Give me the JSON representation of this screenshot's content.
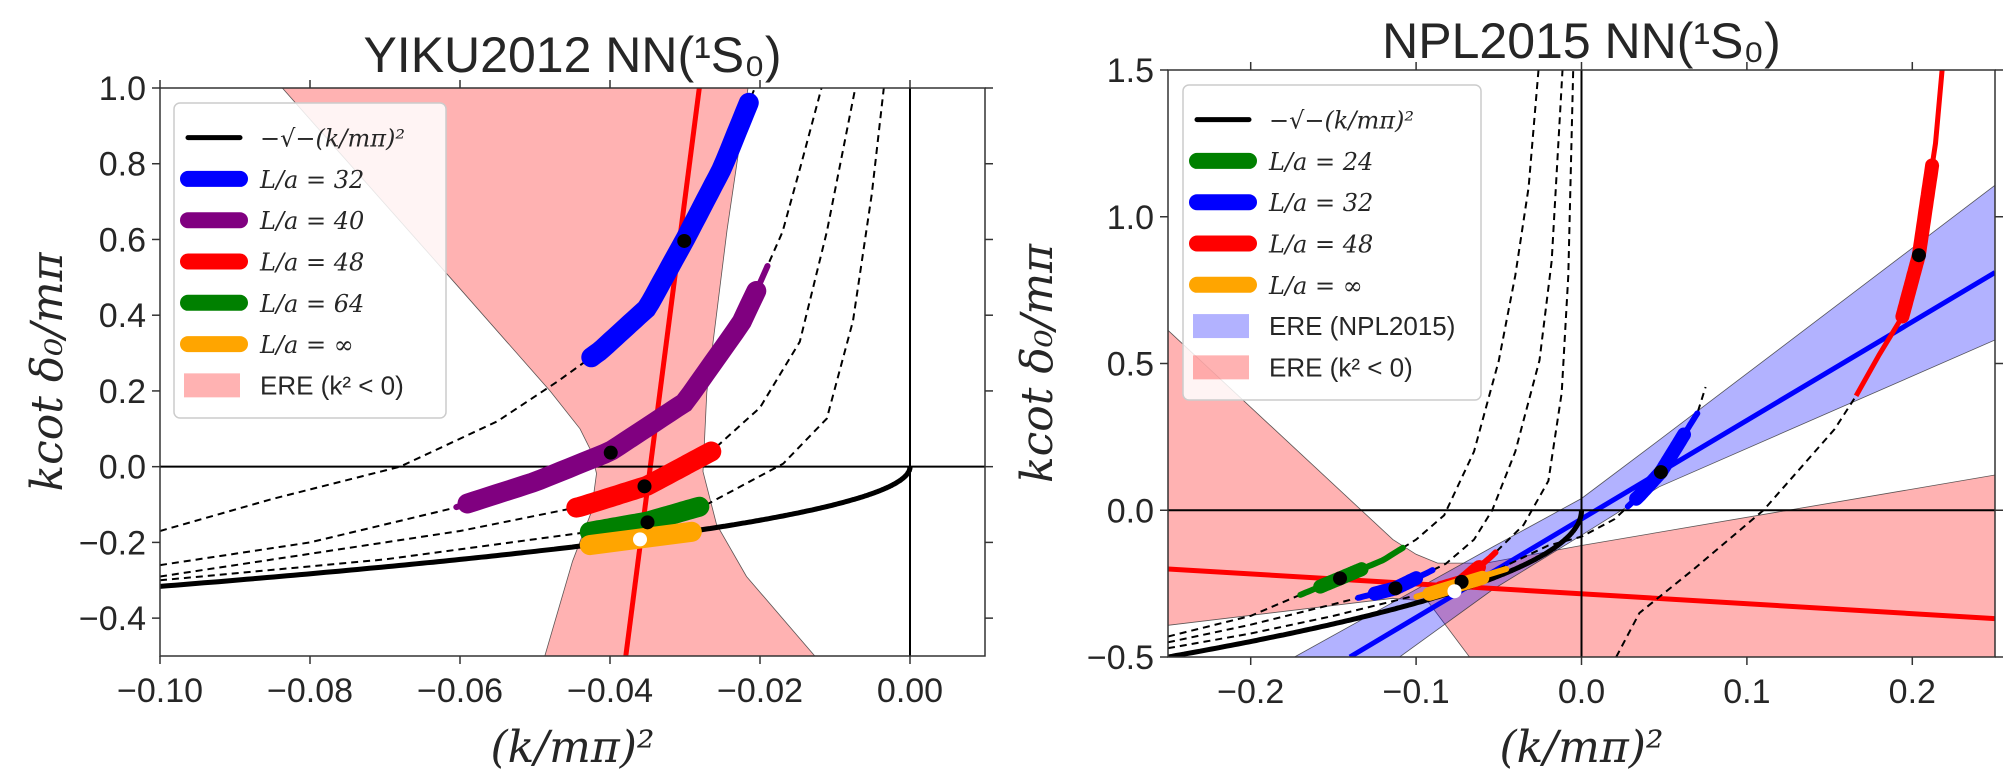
{
  "chart_data": [
    {
      "type": "line",
      "title": "YIKU2012 NN(¹S₀)",
      "xlabel": "(k/mπ)²",
      "ylabel": "kcot δ₀/mπ",
      "xlim": [
        -0.1,
        0.01
      ],
      "ylim": [
        -0.5,
        1.0
      ],
      "grid": false,
      "legend_position": "upper-left",
      "xticks": [
        -0.1,
        -0.08,
        -0.06,
        -0.04,
        -0.02,
        0.0
      ],
      "xtick_labels": [
        "−0.10",
        "−0.08",
        "−0.06",
        "−0.04",
        "−0.02",
        "0.00"
      ],
      "yticks": [
        -0.4,
        -0.2,
        0.0,
        0.2,
        0.4,
        0.6,
        0.8,
        1.0
      ],
      "ytick_labels": [
        "−0.4",
        "−0.2",
        "0.0",
        "0.2",
        "0.4",
        "0.6",
        "0.8",
        "1.0"
      ],
      "regions": [
        {
          "name": "ERE (k² < 0)",
          "color": "#ff0000",
          "points": [
            [
              -0.0837,
              1.0
            ],
            [
              -0.06,
              0.47
            ],
            [
              -0.048,
              0.2
            ],
            [
              -0.044,
              0.1
            ],
            [
              -0.0425,
              0.04
            ],
            [
              -0.0418,
              -0.018
            ],
            [
              -0.0425,
              -0.12
            ],
            [
              -0.045,
              -0.25
            ],
            [
              -0.0487,
              -0.5
            ],
            [
              -0.0127,
              -0.5
            ],
            [
              -0.0218,
              -0.29
            ],
            [
              -0.0258,
              -0.152
            ],
            [
              -0.0276,
              -0.013
            ],
            [
              -0.0271,
              0.196
            ],
            [
              -0.0244,
              0.624
            ],
            [
              -0.0216,
              1.0
            ]
          ]
        }
      ],
      "lines": [
        {
          "name": "ERE (k² < 0) fit",
          "color": "#ff0000",
          "points": [
            [
              -0.0281,
              1.0
            ],
            [
              -0.0379,
              -0.5
            ]
          ]
        }
      ],
      "curves": [
        {
          "name": "Lüscher L/a=32",
          "style": "dashed",
          "color": "#000000",
          "points": [
            [
              -0.1,
              -0.17
            ],
            [
              -0.085,
              -0.085
            ],
            [
              -0.068,
              0.0
            ],
            [
              -0.055,
              0.12
            ],
            [
              -0.047,
              0.225
            ],
            [
              -0.0413,
              0.306
            ],
            [
              -0.035,
              0.42
            ],
            [
              -0.03,
              0.6
            ],
            [
              -0.025,
              0.79
            ],
            [
              -0.0207,
              1.0
            ]
          ]
        },
        {
          "name": "Lüscher L/a=40",
          "style": "dashed",
          "color": "#000000",
          "points": [
            [
              -0.1,
              -0.26
            ],
            [
              -0.08,
              -0.2
            ],
            [
              -0.061,
              -0.11
            ],
            [
              -0.05,
              -0.04
            ],
            [
              -0.04,
              0.04
            ],
            [
              -0.03,
              0.17
            ],
            [
              -0.0225,
              0.38
            ],
            [
              -0.02,
              0.485
            ],
            [
              -0.017,
              0.62
            ],
            [
              -0.0145,
              0.8
            ],
            [
              -0.0118,
              1.0
            ]
          ]
        },
        {
          "name": "Lüscher L/a=48",
          "style": "dashed",
          "color": "#000000",
          "points": [
            [
              -0.1,
              -0.29
            ],
            [
              -0.08,
              -0.23
            ],
            [
              -0.06,
              -0.17
            ],
            [
              -0.044,
              -0.106
            ],
            [
              -0.035,
              -0.05
            ],
            [
              -0.0265,
              0.04
            ],
            [
              -0.02,
              0.156
            ],
            [
              -0.0147,
              0.33
            ],
            [
              -0.0111,
              0.62
            ],
            [
              -0.0073,
              1.0
            ]
          ]
        },
        {
          "name": "Lüscher L/a=64",
          "style": "dashed",
          "color": "#000000",
          "points": [
            [
              -0.1,
              -0.3
            ],
            [
              -0.07,
              -0.245
            ],
            [
              -0.0427,
              -0.172
            ],
            [
              -0.035,
              -0.145
            ],
            [
              -0.0271,
              -0.1
            ],
            [
              -0.0169,
              0.008
            ],
            [
              -0.0111,
              0.127
            ],
            [
              -0.0076,
              0.385
            ],
            [
              -0.0051,
              0.72
            ],
            [
              -0.0035,
              1.0
            ]
          ]
        }
      ],
      "sqrt_curve": {
        "label": "−√−(k/mπ)²",
        "function": "-sqrt(-x)",
        "domain": [
          -0.1,
          0.0
        ],
        "color": "#000000"
      },
      "bands": [
        {
          "label": "L/a = 32",
          "color": "#0000ff",
          "curve": 0,
          "thick": [
            -0.0425,
            -0.0215
          ]
        },
        {
          "label": "L/a = 40",
          "color": "#800080",
          "curve": 1,
          "thin": [
            -0.0605,
            -0.019
          ],
          "thick": [
            -0.059,
            -0.0205
          ]
        },
        {
          "label": "L/a = 48",
          "color": "#ff0000",
          "curve": 2,
          "thick": [
            -0.0445,
            -0.0265
          ]
        },
        {
          "label": "L/a = 64",
          "color": "#008000",
          "curve": 3,
          "thick": [
            -0.0427,
            -0.0281
          ]
        },
        {
          "label": "L/a = ∞",
          "color": "#ffa500",
          "thick_points": [
            [
              -0.0427,
              -0.207
            ],
            [
              -0.0291,
              -0.172
            ]
          ]
        }
      ],
      "markers": [
        {
          "x": -0.0301,
          "y": 0.596,
          "color": "#000000"
        },
        {
          "x": -0.0399,
          "y": 0.037,
          "color": "#000000"
        },
        {
          "x": -0.0354,
          "y": -0.052,
          "color": "#000000"
        },
        {
          "x": -0.035,
          "y": -0.147,
          "color": "#000000"
        },
        {
          "x": -0.036,
          "y": -0.192,
          "color": "#ffffff"
        }
      ],
      "legend": [
        {
          "kind": "line",
          "label": "−√−(k/mπ)²",
          "color": "#000000"
        },
        {
          "kind": "band",
          "label": "L/a = 32",
          "color": "#0000ff"
        },
        {
          "kind": "band",
          "label": "L/a = 40",
          "color": "#800080"
        },
        {
          "kind": "band",
          "label": "L/a = 48",
          "color": "#ff0000"
        },
        {
          "kind": "band",
          "label": "L/a = 64",
          "color": "#008000"
        },
        {
          "kind": "band",
          "label": "L/a = ∞",
          "color": "#ffa500"
        },
        {
          "kind": "patch",
          "label": "ERE (k² < 0)",
          "color": "#ff0000"
        }
      ]
    },
    {
      "type": "line",
      "title": "NPL2015 NN(¹S₀)",
      "xlabel": "(k/mπ)²",
      "ylabel": "kcot δ₀/mπ",
      "xlim": [
        -0.25,
        0.25
      ],
      "ylim": [
        -0.5,
        1.5
      ],
      "grid": false,
      "legend_position": "upper-left",
      "xticks": [
        -0.2,
        -0.1,
        0.0,
        0.1,
        0.2
      ],
      "xtick_labels": [
        "−0.2",
        "−0.1",
        "0.0",
        "0.1",
        "0.2"
      ],
      "yticks": [
        -0.5,
        0.0,
        0.5,
        1.0,
        1.5
      ],
      "ytick_labels": [
        "−0.5",
        "0.0",
        "0.5",
        "1.0",
        "1.5"
      ],
      "regions": [
        {
          "name": "ERE (k² < 0)",
          "color": "#ff0000",
          "points": [
            [
              -0.25,
              0.613
            ],
            [
              -0.114,
              -0.1
            ],
            [
              -0.1,
              -0.15
            ],
            [
              -0.087,
              -0.18
            ],
            [
              -0.058,
              -0.18
            ],
            [
              0.0,
              -0.12
            ],
            [
              0.25,
              0.12
            ],
            [
              0.25,
              -0.5
            ],
            [
              -0.0677,
              -0.5
            ],
            [
              -0.093,
              -0.31
            ],
            [
              -0.114,
              -0.3
            ],
            [
              -0.25,
              -0.392
            ]
          ]
        },
        {
          "name": "ERE (NPL2015)",
          "color": "#0000ff",
          "points": [
            [
              -0.1735,
              -0.5
            ],
            [
              -0.0536,
              -0.125
            ],
            [
              0.0,
              0.04
            ],
            [
              0.047,
              0.239
            ],
            [
              0.25,
              1.107
            ],
            [
              0.25,
              0.58
            ],
            [
              0.047,
              0.08
            ],
            [
              0.0,
              -0.085
            ],
            [
              -0.0536,
              -0.27
            ],
            [
              -0.11,
              -0.5
            ]
          ]
        }
      ],
      "lines": [
        {
          "name": "ERE (k² < 0) fit",
          "color": "#ff0000",
          "points": [
            [
              -0.25,
              -0.2
            ],
            [
              0.25,
              -0.369
            ]
          ]
        },
        {
          "name": "ERE (NPL2015) fit",
          "color": "#0000ff",
          "points": [
            [
              -0.14,
              -0.5
            ],
            [
              0.25,
              0.81
            ]
          ]
        }
      ],
      "curves": [
        {
          "name": "Lüscher L/a=24",
          "style": "dashed",
          "color": "#000000",
          "points": [
            [
              -0.25,
              -0.43
            ],
            [
              -0.2,
              -0.36
            ],
            [
              -0.175,
              -0.3
            ],
            [
              -0.146,
              -0.232
            ],
            [
              -0.12,
              -0.17
            ],
            [
              -0.1,
              -0.1
            ],
            [
              -0.083,
              -0.017
            ],
            [
              -0.065,
              0.2
            ],
            [
              -0.05,
              0.51
            ],
            [
              -0.04,
              0.8
            ],
            [
              -0.032,
              1.1
            ],
            [
              -0.026,
              1.5
            ]
          ]
        },
        {
          "name": "Lüscher L/a=32",
          "style": "dashed",
          "color": "#000000",
          "points": [
            [
              -0.25,
              -0.45
            ],
            [
              -0.2,
              -0.39
            ],
            [
              -0.15,
              -0.32
            ],
            [
              -0.1125,
              -0.266
            ],
            [
              -0.082,
              -0.182
            ],
            [
              -0.065,
              -0.1
            ],
            [
              -0.054,
              0.0
            ],
            [
              -0.04,
              0.2
            ],
            [
              -0.0254,
              0.511
            ],
            [
              -0.018,
              0.85
            ],
            [
              -0.0115,
              1.5
            ]
          ]
        },
        {
          "name": "Lüscher L/a=48",
          "style": "dashed",
          "color": "#000000",
          "points": [
            [
              -0.25,
              -0.47
            ],
            [
              -0.2,
              -0.42
            ],
            [
              -0.15,
              -0.36
            ],
            [
              -0.1,
              -0.29
            ],
            [
              -0.0725,
              -0.244
            ],
            [
              -0.055,
              -0.16
            ],
            [
              -0.035,
              -0.05
            ],
            [
              -0.02,
              0.1
            ],
            [
              -0.012,
              0.4
            ],
            [
              -0.008,
              0.8
            ],
            [
              -0.005,
              1.5
            ]
          ]
        },
        {
          "name": "Lüscher L/a=32 (2nd)",
          "style": "dashed",
          "color": "#000000",
          "points": [
            [
              -0.05,
              -0.2
            ],
            [
              -0.02,
              -0.12
            ],
            [
              0.0,
              -0.09
            ],
            [
              0.02,
              -0.03
            ],
            [
              0.035,
              0.05
            ],
            [
              0.048,
              0.13
            ],
            [
              0.06,
              0.24
            ],
            [
              0.07,
              0.33
            ],
            [
              0.075,
              0.42
            ]
          ]
        },
        {
          "name": "Lüscher L/a=48 (2nd)",
          "style": "dashed",
          "color": "#000000",
          "points": [
            [
              0.021,
              -0.5
            ],
            [
              0.035,
              -0.35
            ],
            [
              0.068,
              -0.2
            ],
            [
              0.11,
              0.0
            ],
            [
              0.153,
              0.276
            ],
            [
              0.166,
              0.39
            ]
          ]
        },
        {
          "name": "L/a=48 band",
          "style": "solid",
          "color": "#ff0000",
          "points": [
            [
              0.166,
              0.39
            ],
            [
              0.18,
              0.53
            ],
            [
              0.194,
              0.66
            ],
            [
              0.204,
              0.87
            ],
            [
              0.21,
              1.1
            ],
            [
              0.214,
              1.25
            ],
            [
              0.218,
              1.5
            ]
          ]
        }
      ],
      "sqrt_curve": {
        "label": "−√−(k/mπ)²",
        "function": "-sqrt(-x)",
        "domain": [
          -0.25,
          0.0
        ],
        "color": "#000000"
      },
      "bands": [
        {
          "label": "L/a = 24",
          "color": "#008000",
          "curve": 0,
          "thin": [
            -0.17,
            -0.108
          ],
          "thick": [
            -0.158,
            -0.133
          ]
        },
        {
          "label": "L/a = 32",
          "color": "#0000ff",
          "curve": 1,
          "thin": [
            -0.135,
            -0.09
          ],
          "thick": [
            -0.125,
            -0.1
          ]
        },
        {
          "label": "L/a = 32",
          "color": "#0000ff",
          "curve": 3,
          "thin": [
            0.028,
            0.07
          ],
          "thick": [
            0.033,
            0.062
          ]
        },
        {
          "label": "L/a = 48",
          "color": "#ff0000",
          "curve": 2,
          "thin": [
            -0.092,
            -0.052
          ],
          "thick": [
            -0.085,
            -0.062
          ]
        },
        {
          "label": "L/a = 48",
          "color": "#ff0000",
          "curve": 5,
          "thick": [
            0.194,
            0.212
          ]
        },
        {
          "label": "L/a = ∞",
          "color": "#ffa500",
          "thin_points": [
            [
              -0.0998,
              -0.295
            ],
            [
              -0.0455,
              -0.2
            ]
          ],
          "thick_points": [
            [
              -0.092,
              -0.285
            ],
            [
              -0.06,
              -0.23
            ]
          ]
        }
      ],
      "markers": [
        {
          "x": -0.146,
          "y": -0.232,
          "color": "#000000"
        },
        {
          "x": -0.1125,
          "y": -0.266,
          "color": "#000000"
        },
        {
          "x": -0.0725,
          "y": -0.244,
          "color": "#000000"
        },
        {
          "x": 0.048,
          "y": 0.13,
          "color": "#000000"
        },
        {
          "x": 0.204,
          "y": 0.869,
          "color": "#000000"
        },
        {
          "x": -0.0768,
          "y": -0.276,
          "color": "#ffffff"
        }
      ],
      "legend": [
        {
          "kind": "line",
          "label": "−√−(k/mπ)²",
          "color": "#000000"
        },
        {
          "kind": "band",
          "label": "L/a = 24",
          "color": "#008000"
        },
        {
          "kind": "band",
          "label": "L/a = 32",
          "color": "#0000ff"
        },
        {
          "kind": "band",
          "label": "L/a = 48",
          "color": "#ff0000"
        },
        {
          "kind": "band",
          "label": "L/a = ∞",
          "color": "#ffa500"
        },
        {
          "kind": "patch",
          "label": "ERE (NPL2015)",
          "color": "#0000ff"
        },
        {
          "kind": "patch",
          "label": "ERE (k² < 0)",
          "color": "#ff0000"
        }
      ]
    }
  ]
}
